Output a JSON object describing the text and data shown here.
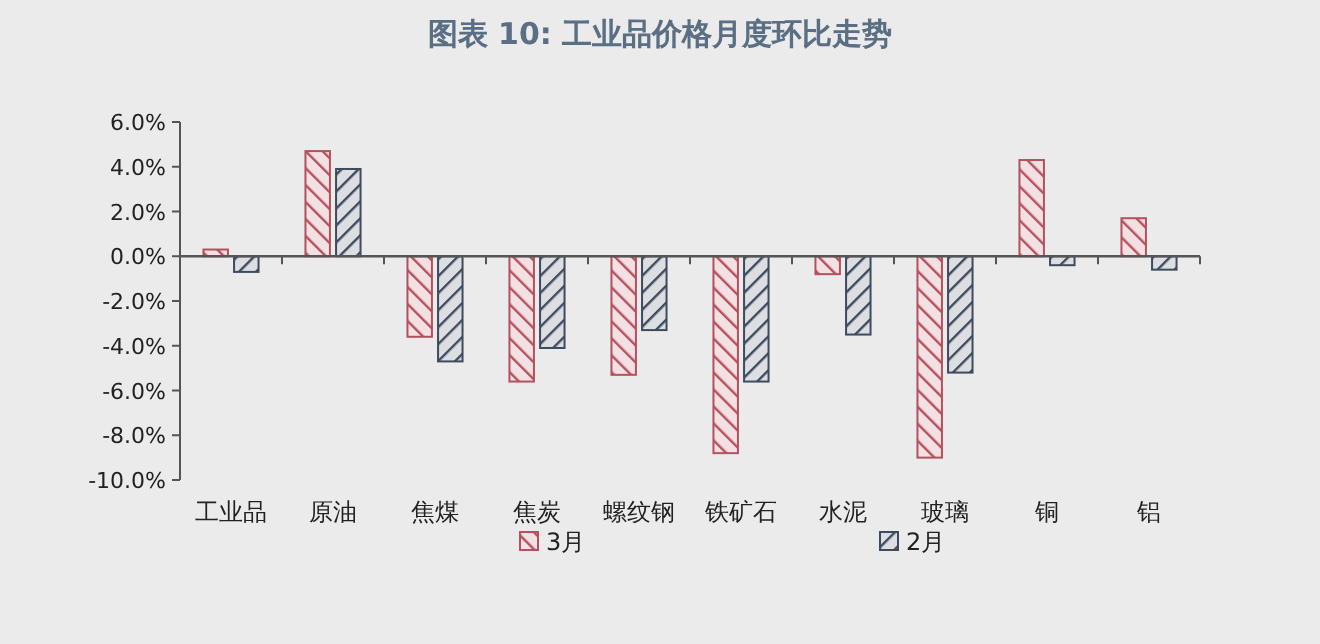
{
  "chart_data": {
    "type": "bar",
    "title": "图表 10: 工业品价格月度环比走势",
    "categories": [
      "工业品",
      "原油",
      "焦煤",
      "焦炭",
      "螺纹钢",
      "铁矿石",
      "水泥",
      "玻璃",
      "铜",
      "铝"
    ],
    "series": [
      {
        "name": "3月",
        "color": "#b5505e",
        "values": [
          0.3,
          4.7,
          -3.6,
          -5.6,
          -5.3,
          -8.8,
          -0.8,
          -9.0,
          4.3,
          1.7
        ]
      },
      {
        "name": "2月",
        "color": "#3e4a5e",
        "values": [
          -0.7,
          3.9,
          -4.7,
          -4.1,
          -3.3,
          -5.6,
          -3.5,
          -5.2,
          -0.4,
          -0.6
        ]
      }
    ],
    "ylim": [
      -10,
      6
    ],
    "yticks": [
      {
        "value": -10,
        "label": "-10.0%"
      },
      {
        "value": -8,
        "label": "-8.0%"
      },
      {
        "value": -6,
        "label": "-6.0%"
      },
      {
        "value": -4,
        "label": "-4.0%"
      },
      {
        "value": -2,
        "label": "-2.0%"
      },
      {
        "value": 0,
        "label": "0.0%"
      },
      {
        "value": 2,
        "label": "2.0%"
      },
      {
        "value": 4,
        "label": "4.0%"
      },
      {
        "value": 6,
        "label": "6.0%"
      }
    ],
    "legend": "bottom"
  }
}
